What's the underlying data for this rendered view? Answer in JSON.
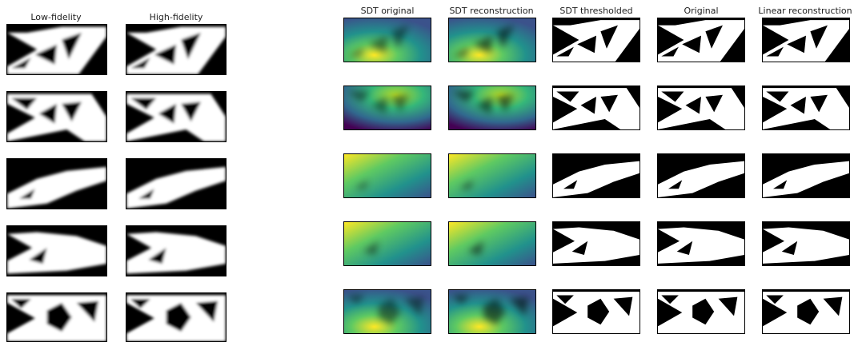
{
  "titles": {
    "low_fidelity": "Low-fidelity",
    "high_fidelity": "High-fidelity",
    "sdt_original": "SDT original",
    "sdt_reconstruction": "SDT reconstruction",
    "sdt_thresholded": "SDT thresholded",
    "original": "Original",
    "linear_reconstruction": "Linear reconstruction"
  },
  "colors": {
    "solid": "#ffffff",
    "void": "#000000",
    "viridis_dark": "#440154",
    "viridis_mid": "#21918c",
    "viridis_bright": "#fde725"
  }
}
